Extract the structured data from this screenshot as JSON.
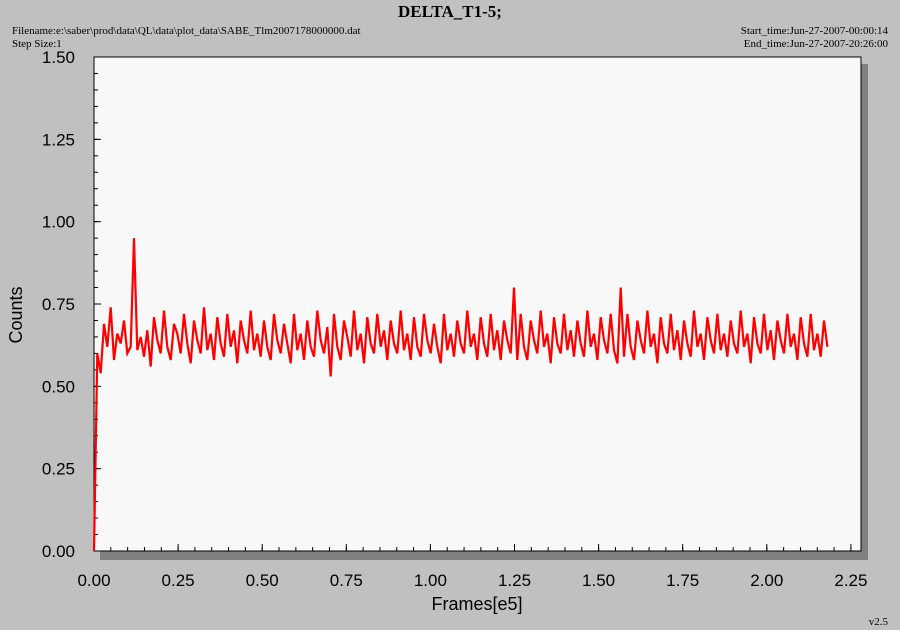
{
  "header": {
    "title": "DELTA_T1-5;",
    "filename": "Filename:e:\\saber\\prod\\data\\QL\\data\\plot_data\\SABE_Tlm2007178000000.dat",
    "step_size": "Step Size:1",
    "start_time": "Start_time:Jun-27-2007-00:00:14",
    "end_time": "End_time:Jun-27-2007-20:26:00",
    "version": "v2.5"
  },
  "colors": {
    "background": "#c0c0c0",
    "plot_area": "#f8f8f8",
    "shadow": "#808080",
    "series": "#ff0000"
  },
  "chart_data": {
    "type": "line",
    "title": "DELTA_T1-5;",
    "xlabel": "Frames[e5]",
    "ylabel": "Counts",
    "xlim": [
      0,
      2.28
    ],
    "ylim": [
      0,
      1.5
    ],
    "xticks": [
      "0.00",
      "0.25",
      "0.50",
      "0.75",
      "1.00",
      "1.25",
      "1.50",
      "1.75",
      "2.00",
      "2.25"
    ],
    "yticks": [
      "0.00",
      "0.25",
      "0.50",
      "0.75",
      "1.00",
      "1.25",
      "1.50"
    ],
    "grid": false,
    "series": [
      {
        "x_start": 0.0,
        "x_end": 2.18,
        "values": [
          0.0,
          0.6,
          0.54,
          0.69,
          0.62,
          0.74,
          0.58,
          0.66,
          0.63,
          0.7,
          0.6,
          0.62,
          0.95,
          0.61,
          0.65,
          0.59,
          0.67,
          0.56,
          0.71,
          0.64,
          0.6,
          0.73,
          0.62,
          0.58,
          0.69,
          0.66,
          0.6,
          0.72,
          0.63,
          0.57,
          0.7,
          0.64,
          0.6,
          0.74,
          0.61,
          0.66,
          0.58,
          0.71,
          0.63,
          0.59,
          0.72,
          0.62,
          0.67,
          0.57,
          0.7,
          0.64,
          0.6,
          0.73,
          0.61,
          0.66,
          0.59,
          0.7,
          0.62,
          0.58,
          0.72,
          0.64,
          0.6,
          0.69,
          0.63,
          0.57,
          0.72,
          0.61,
          0.66,
          0.58,
          0.7,
          0.62,
          0.59,
          0.73,
          0.64,
          0.6,
          0.68,
          0.53,
          0.72,
          0.62,
          0.58,
          0.7,
          0.65,
          0.59,
          0.73,
          0.61,
          0.66,
          0.57,
          0.71,
          0.63,
          0.6,
          0.72,
          0.62,
          0.67,
          0.58,
          0.7,
          0.63,
          0.6,
          0.73,
          0.61,
          0.66,
          0.58,
          0.71,
          0.62,
          0.59,
          0.72,
          0.64,
          0.6,
          0.69,
          0.62,
          0.57,
          0.72,
          0.61,
          0.66,
          0.59,
          0.7,
          0.63,
          0.6,
          0.73,
          0.62,
          0.66,
          0.58,
          0.71,
          0.63,
          0.59,
          0.72,
          0.61,
          0.67,
          0.58,
          0.7,
          0.64,
          0.6,
          0.8,
          0.58,
          0.72,
          0.62,
          0.58,
          0.7,
          0.64,
          0.6,
          0.73,
          0.62,
          0.66,
          0.57,
          0.71,
          0.63,
          0.6,
          0.72,
          0.61,
          0.67,
          0.59,
          0.7,
          0.63,
          0.59,
          0.73,
          0.62,
          0.66,
          0.58,
          0.71,
          0.64,
          0.6,
          0.72,
          0.61,
          0.57,
          0.8,
          0.59,
          0.72,
          0.62,
          0.58,
          0.7,
          0.64,
          0.6,
          0.73,
          0.62,
          0.66,
          0.57,
          0.71,
          0.63,
          0.6,
          0.72,
          0.61,
          0.67,
          0.58,
          0.7,
          0.63,
          0.59,
          0.73,
          0.62,
          0.66,
          0.58,
          0.71,
          0.64,
          0.6,
          0.72,
          0.61,
          0.66,
          0.59,
          0.7,
          0.63,
          0.6,
          0.73,
          0.62,
          0.66,
          0.57,
          0.71,
          0.63,
          0.6,
          0.72,
          0.61,
          0.67,
          0.58,
          0.7,
          0.64,
          0.6,
          0.72,
          0.62,
          0.66,
          0.58,
          0.71,
          0.63,
          0.59,
          0.72,
          0.61,
          0.66,
          0.59,
          0.7,
          0.62
        ]
      }
    ]
  }
}
